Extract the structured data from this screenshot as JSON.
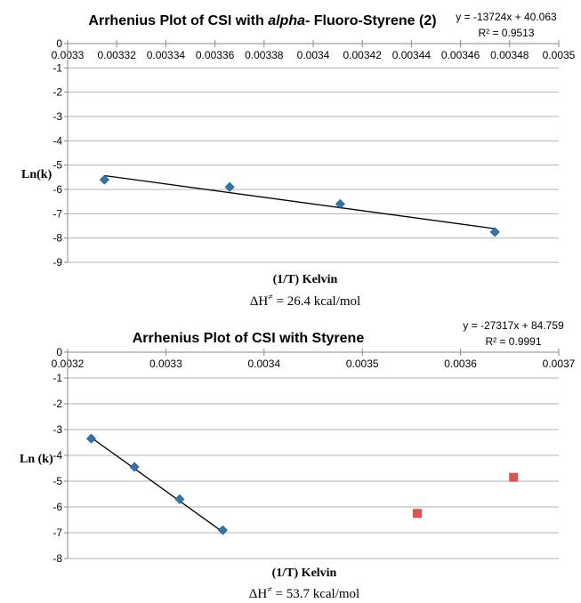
{
  "chart_data": [
    {
      "type": "scatter",
      "title_parts": [
        "Arrhenius Plot of CSI with ",
        "alpha",
        "- Fluoro-Styrene (2)"
      ],
      "xlabel": "(1/T) Kelvin",
      "ylabel": "Ln(k)",
      "xlim": [
        0.0033,
        0.0035
      ],
      "ylim": [
        -9,
        0
      ],
      "x_ticks": [
        "0.0033",
        "0.00332",
        "0.00334",
        "0.00336",
        "0.00338",
        "0.0034",
        "0.00342",
        "0.00344",
        "0.00346",
        "0.00348",
        "0.0035"
      ],
      "y_ticks": [
        "0",
        "-1",
        "-2",
        "-3",
        "-4",
        "-5",
        "-6",
        "-7",
        "-8",
        "-9"
      ],
      "grid": "horizontal",
      "series": [
        {
          "marker": "diamond",
          "color": "#2E75B6",
          "points": [
            [
              0.003315,
              -5.6
            ],
            [
              0.003366,
              -5.9
            ],
            [
              0.003411,
              -6.6
            ],
            [
              0.003474,
              -7.75
            ]
          ]
        }
      ],
      "trendline": {
        "slope": -13724,
        "intercept": 40.063,
        "x_range": [
          0.003315,
          0.003474
        ]
      },
      "equation": "y = -13724x + 40.063",
      "r2": "R² = 0.9513",
      "annotation": {
        "prefix": "ΔH",
        "sup": "≠",
        "suffix": " = 26.4 kcal/mol"
      }
    },
    {
      "type": "scatter",
      "title_parts": [
        "Arrhenius Plot of CSI with Styrene"
      ],
      "xlabel": "(1/T) Kelvin",
      "ylabel": "Ln (k)",
      "xlim": [
        0.0032,
        0.0037
      ],
      "ylim": [
        -8,
        0
      ],
      "x_ticks": [
        "0.0032",
        "0.0033",
        "0.0034",
        "0.0035",
        "0.0036",
        "0.0037"
      ],
      "y_ticks": [
        "0",
        "-1",
        "-2",
        "-3",
        "-4",
        "-5",
        "-6",
        "-7",
        "-8"
      ],
      "grid": "horizontal",
      "series": [
        {
          "marker": "diamond",
          "color": "#2E75B6",
          "points": [
            [
              0.003224,
              -3.35
            ],
            [
              0.003268,
              -4.45
            ],
            [
              0.003314,
              -5.7
            ],
            [
              0.003358,
              -6.9
            ]
          ]
        },
        {
          "marker": "square",
          "color": "#E0504D",
          "points": [
            [
              0.003556,
              -6.25
            ],
            [
              0.003654,
              -4.85
            ]
          ]
        }
      ],
      "trendline": {
        "slope": -27317,
        "intercept": 84.759,
        "x_range": [
          0.003224,
          0.003358
        ]
      },
      "equation": "y = -27317x + 84.759",
      "r2": "R² = 0.9991",
      "annotation": {
        "prefix": "ΔH",
        "sup": "≠",
        "suffix": " = 53.7 kcal/mol"
      }
    }
  ]
}
